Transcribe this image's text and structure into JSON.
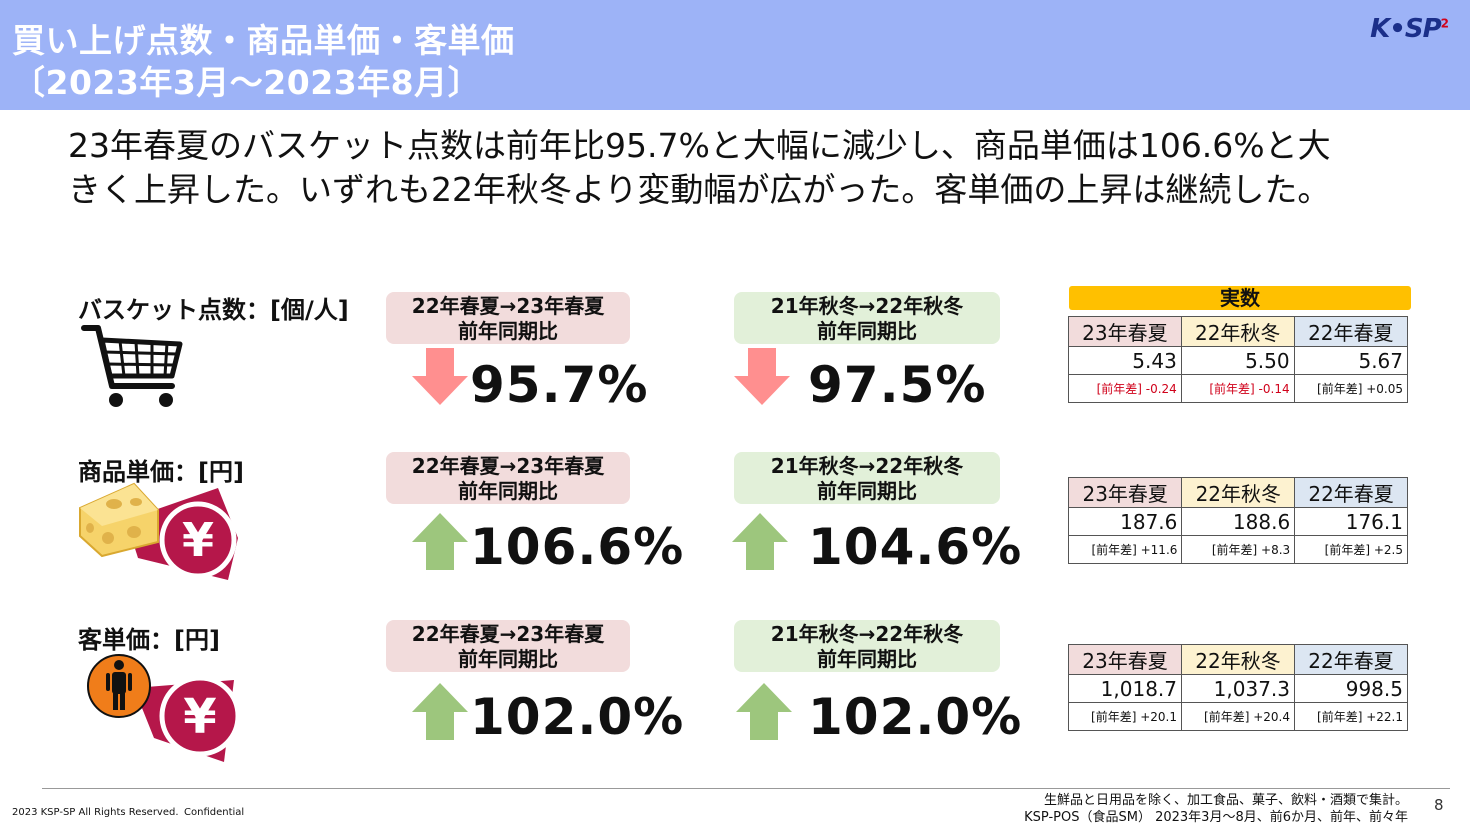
{
  "header": {
    "title_line1": "買い上げ点数・商品単価・客単価",
    "title_line2": "〔2023年3月～2023年8月〕",
    "logo": "K•SP",
    "logo_sup": "2"
  },
  "lead": {
    "line1": "23年春夏のバスケット点数は前年比95.7%と大幅に減少し、商品単価は106.6%と大",
    "line2": "きく上昇した。いずれも22年秋冬より変動幅が広がった。客単価の上昇は継続した。"
  },
  "jissu_label": "実数",
  "colors": {
    "header_bg": "#9db3f7",
    "down_arrow": "#ff8f8f",
    "up_arrow": "#9dc67d",
    "badge": "#ffc000",
    "icon_wine": "#b5174a"
  },
  "rows": [
    {
      "label": "バスケット点数：[個/人]",
      "icon": "shopping-cart-icon",
      "compare1": {
        "line1": "22年春夏→23年春夏",
        "line2": "前年同期比",
        "value": "95.7%",
        "direction": "down"
      },
      "compare2": {
        "line1": "21年秋冬→22年秋冬",
        "line2": "前年同期比",
        "value": "97.5%",
        "direction": "down"
      },
      "table": {
        "headers": [
          "23年春夏",
          "22年秋冬",
          "22年春夏"
        ],
        "values": [
          "5.43",
          "5.50",
          "5.67"
        ],
        "diffs": [
          "[前年差] -0.24",
          "[前年差] -0.14",
          "[前年差] +0.05"
        ]
      }
    },
    {
      "label": "商品単価：[円]",
      "icon": "cheese-yen-icon",
      "compare1": {
        "line1": "22年春夏→23年春夏",
        "line2": "前年同期比",
        "value": "106.6%",
        "direction": "up"
      },
      "compare2": {
        "line1": "21年秋冬→22年秋冬",
        "line2": "前年同期比",
        "value": "104.6%",
        "direction": "up"
      },
      "table": {
        "headers": [
          "23年春夏",
          "22年秋冬",
          "22年春夏"
        ],
        "values": [
          "187.6",
          "188.6",
          "176.1"
        ],
        "diffs": [
          "[前年差] +11.6",
          "[前年差] +8.3",
          "[前年差] +2.5"
        ]
      }
    },
    {
      "label": "客単価：[円]",
      "icon": "person-yen-icon",
      "compare1": {
        "line1": "22年春夏→23年春夏",
        "line2": "前年同期比",
        "value": "102.0%",
        "direction": "up"
      },
      "compare2": {
        "line1": "21年秋冬→22年秋冬",
        "line2": "前年同期比",
        "value": "102.0%",
        "direction": "up"
      },
      "table": {
        "headers": [
          "23年春夏",
          "22年秋冬",
          "22年春夏"
        ],
        "values": [
          "1,018.7",
          "1,037.3",
          "998.5"
        ],
        "diffs": [
          "[前年差] +20.1",
          "[前年差] +20.4",
          "[前年差] +22.1"
        ]
      }
    }
  ],
  "icon_glyphs": {
    "yen": "¥"
  },
  "footer": {
    "copyright": "2023 KSP-SP All Rights Reserved.",
    "confidential": "Confidential",
    "note1": "生鮮品と日用品を除く、加工食品、菓子、飲料・酒類で集計。",
    "note2": "KSP-POS（食品SM） 2023年3月～8月、前6か月、前年、前々年",
    "page": "8"
  }
}
